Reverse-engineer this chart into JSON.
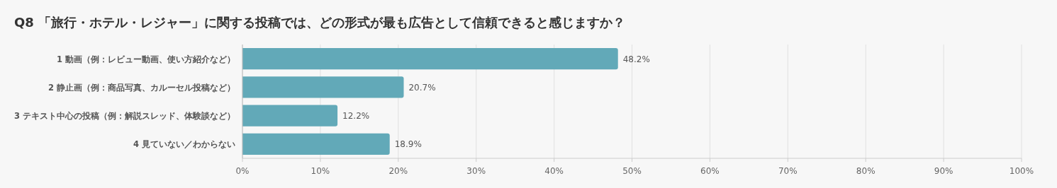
{
  "chart_data": {
    "type": "bar",
    "orientation": "horizontal",
    "title": "Q8 「旅行・ホテル・レジャー」に関する投稿では、どの形式が最も広告として信頼できると感じますか？",
    "categories": [
      "1 動画（例：レビュー動画、使い方紹介など）",
      "2 静止画（例：商品写真、カルーセル投稿など）",
      "3 テキスト中心の投稿（例：解説スレッド、体験談など）",
      "4 見ていない／わからない"
    ],
    "values": [
      48.2,
      20.7,
      12.2,
      18.9
    ],
    "value_labels": [
      "48.2%",
      "20.7%",
      "12.2%",
      "18.9%"
    ],
    "color": "#62a9b8",
    "xlim": [
      0,
      100
    ],
    "xticks": [
      {
        "value": 0,
        "label": "0%"
      },
      {
        "value": 10,
        "label": "10%"
      },
      {
        "value": 20,
        "label": "20%"
      },
      {
        "value": 30,
        "label": "30%"
      },
      {
        "value": 40,
        "label": "40%"
      },
      {
        "value": 50,
        "label": "50%"
      },
      {
        "value": 60,
        "label": "60%"
      },
      {
        "value": 70,
        "label": "70%"
      },
      {
        "value": 80,
        "label": "80%"
      },
      {
        "value": 90,
        "label": "90%"
      },
      {
        "value": 100,
        "label": "100%"
      }
    ],
    "grid": "x"
  }
}
